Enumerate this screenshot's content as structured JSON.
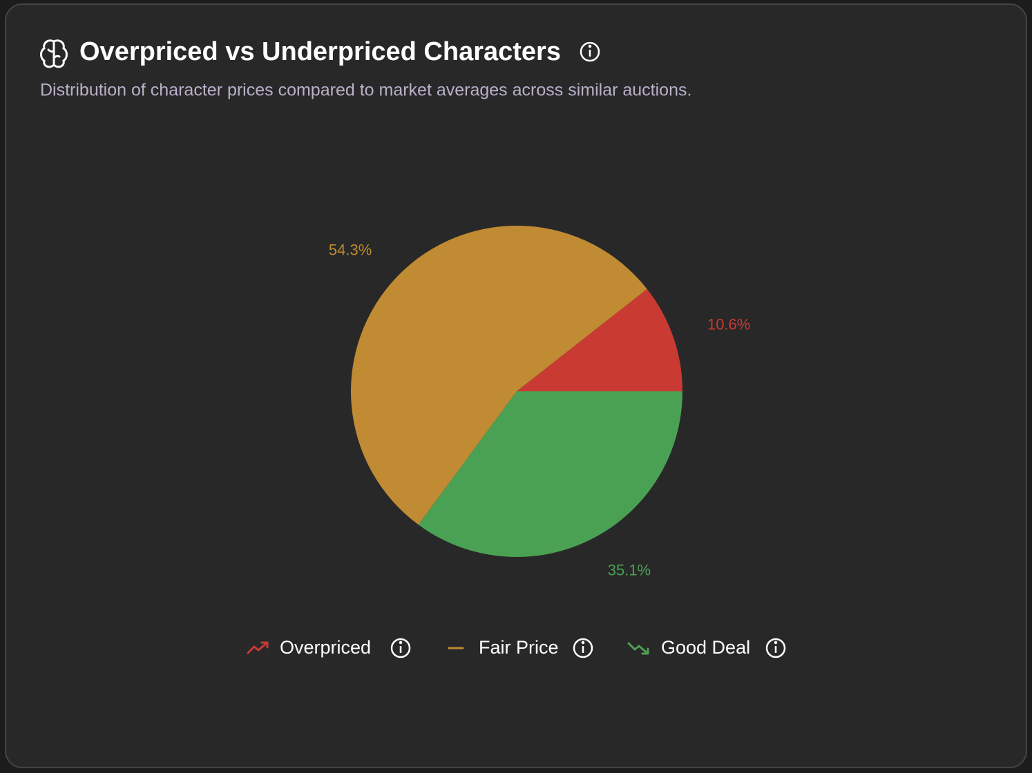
{
  "chart_data": {
    "type": "pie",
    "title": "Overpriced vs Underpriced Characters",
    "subtitle": "Distribution of character prices compared to market averages across similar auctions.",
    "categories": [
      "Overpriced",
      "Fair Price",
      "Good Deal"
    ],
    "values": [
      10.6,
      54.3,
      35.1
    ],
    "value_labels": [
      "10.6%",
      "54.3%",
      "35.1%"
    ],
    "colors": [
      "#c93a33",
      "#c08b32",
      "#4ba153"
    ]
  }
}
